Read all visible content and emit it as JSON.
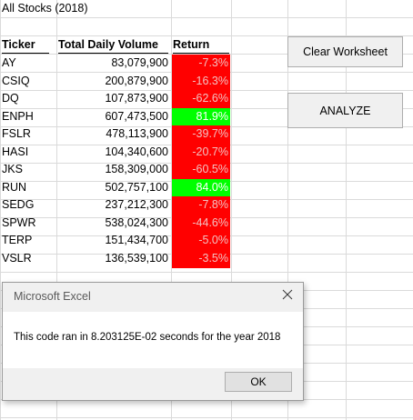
{
  "sheet": {
    "title": "All Stocks (2018)",
    "headers": {
      "ticker": "Ticker",
      "volume": "Total Daily Volume",
      "return": "Return"
    },
    "rows": [
      {
        "ticker": "AY",
        "volume": "83,079,900",
        "return": "-7.3%",
        "positive": false
      },
      {
        "ticker": "CSIQ",
        "volume": "200,879,900",
        "return": "-16.3%",
        "positive": false
      },
      {
        "ticker": "DQ",
        "volume": "107,873,900",
        "return": "-62.6%",
        "positive": false
      },
      {
        "ticker": "ENPH",
        "volume": "607,473,500",
        "return": "81.9%",
        "positive": true
      },
      {
        "ticker": "FSLR",
        "volume": "478,113,900",
        "return": "-39.7%",
        "positive": false
      },
      {
        "ticker": "HASI",
        "volume": "104,340,600",
        "return": "-20.7%",
        "positive": false
      },
      {
        "ticker": "JKS",
        "volume": "158,309,000",
        "return": "-60.5%",
        "positive": false
      },
      {
        "ticker": "RUN",
        "volume": "502,757,100",
        "return": "84.0%",
        "positive": true
      },
      {
        "ticker": "SEDG",
        "volume": "237,212,300",
        "return": "-7.8%",
        "positive": false
      },
      {
        "ticker": "SPWR",
        "volume": "538,024,300",
        "return": "-44.6%",
        "positive": false
      },
      {
        "ticker": "TERP",
        "volume": "151,434,700",
        "return": "-5.0%",
        "positive": false
      },
      {
        "ticker": "VSLR",
        "volume": "136,539,100",
        "return": "-3.5%",
        "positive": false
      }
    ],
    "colors": {
      "negative": "#ff0000",
      "positive": "#00ff00"
    }
  },
  "buttons": {
    "clear": "Clear Worksheet",
    "analyze": "ANALYZE"
  },
  "dialog": {
    "title": "Microsoft Excel",
    "message": "This code ran in 8.203125E-02 seconds for the year 2018",
    "ok": "OK",
    "close_icon": "close-icon"
  }
}
